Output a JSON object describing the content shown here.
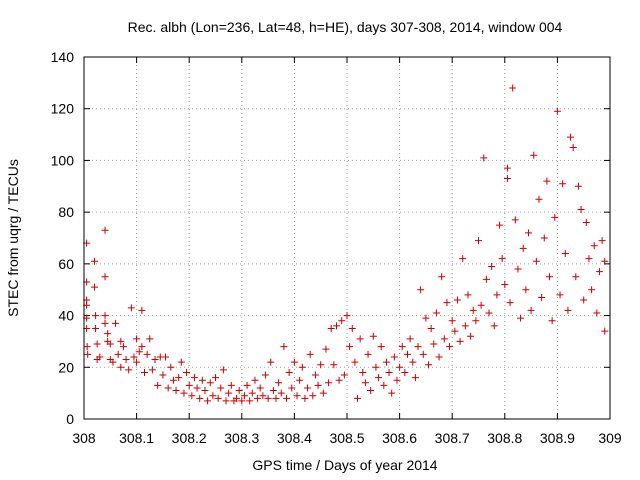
{
  "chart_data": {
    "type": "scatter",
    "title": "Rec. albh (Lon=236, Lat=48, h=HE), days 307-308, 2014, window 004",
    "xlabel": "GPS time / Days of year 2014",
    "ylabel": "STEC from uqrg / TECUs",
    "xlim": [
      308,
      309
    ],
    "ylim": [
      0,
      140
    ],
    "xticks": [
      308,
      308.1,
      308.2,
      308.3,
      308.4,
      308.5,
      308.6,
      308.7,
      308.8,
      308.9,
      309
    ],
    "xtick_labels": [
      "308",
      "308.1",
      "308.2",
      "308.3",
      "308.4",
      "308.5",
      "308.6",
      "308.7",
      "308.8",
      "308.9",
      "309"
    ],
    "yticks": [
      0,
      20,
      40,
      60,
      80,
      100,
      120,
      140
    ],
    "ytick_labels": [
      "0",
      "20",
      "40",
      "60",
      "80",
      "100",
      "120",
      "140"
    ],
    "grid": true,
    "marker": "+",
    "color": "#cc0000",
    "points": [
      [
        308.005,
        68
      ],
      [
        308.005,
        53
      ],
      [
        308.005,
        46
      ],
      [
        308.005,
        44
      ],
      [
        308.005,
        39
      ],
      [
        308.005,
        35
      ],
      [
        308.006,
        28
      ],
      [
        308.007,
        25
      ],
      [
        308.02,
        61
      ],
      [
        308.02,
        51
      ],
      [
        308.022,
        40
      ],
      [
        308.022,
        35
      ],
      [
        308.025,
        29
      ],
      [
        308.025,
        23
      ],
      [
        308.03,
        24
      ],
      [
        308.04,
        73
      ],
      [
        308.04,
        55
      ],
      [
        308.04,
        40
      ],
      [
        308.04,
        37
      ],
      [
        308.045,
        33
      ],
      [
        308.045,
        30
      ],
      [
        308.05,
        29
      ],
      [
        308.05,
        23
      ],
      [
        308.055,
        22
      ],
      [
        308.06,
        37
      ],
      [
        308.065,
        25
      ],
      [
        308.07,
        30
      ],
      [
        308.07,
        20
      ],
      [
        308.075,
        28
      ],
      [
        308.08,
        23
      ],
      [
        308.085,
        19
      ],
      [
        308.09,
        43
      ],
      [
        308.095,
        24
      ],
      [
        308.1,
        31
      ],
      [
        308.1,
        22
      ],
      [
        308.105,
        26
      ],
      [
        308.11,
        42
      ],
      [
        308.11,
        28
      ],
      [
        308.115,
        18
      ],
      [
        308.12,
        25
      ],
      [
        308.125,
        31
      ],
      [
        308.13,
        19
      ],
      [
        308.135,
        23
      ],
      [
        308.14,
        13
      ],
      [
        308.145,
        24
      ],
      [
        308.15,
        17
      ],
      [
        308.155,
        24
      ],
      [
        308.16,
        12
      ],
      [
        308.165,
        20
      ],
      [
        308.17,
        15
      ],
      [
        308.175,
        11
      ],
      [
        308.18,
        16
      ],
      [
        308.185,
        22
      ],
      [
        308.19,
        10
      ],
      [
        308.195,
        18
      ],
      [
        308.2,
        13
      ],
      [
        308.205,
        9
      ],
      [
        308.21,
        16
      ],
      [
        308.215,
        12
      ],
      [
        308.22,
        8
      ],
      [
        308.225,
        15
      ],
      [
        308.23,
        11
      ],
      [
        308.235,
        7
      ],
      [
        308.24,
        14
      ],
      [
        308.245,
        9
      ],
      [
        308.25,
        16
      ],
      [
        308.255,
        8
      ],
      [
        308.26,
        12
      ],
      [
        308.265,
        19
      ],
      [
        308.27,
        7
      ],
      [
        308.275,
        10
      ],
      [
        308.28,
        13
      ],
      [
        308.285,
        7
      ],
      [
        308.29,
        8
      ],
      [
        308.295,
        11
      ],
      [
        308.3,
        7
      ],
      [
        308.305,
        9
      ],
      [
        308.31,
        13
      ],
      [
        308.315,
        7
      ],
      [
        308.32,
        10
      ],
      [
        308.325,
        15
      ],
      [
        308.33,
        8
      ],
      [
        308.335,
        12
      ],
      [
        308.34,
        9
      ],
      [
        308.345,
        17
      ],
      [
        308.35,
        8
      ],
      [
        308.355,
        22
      ],
      [
        308.36,
        11
      ],
      [
        308.365,
        8
      ],
      [
        308.37,
        14
      ],
      [
        308.375,
        10
      ],
      [
        308.38,
        28
      ],
      [
        308.385,
        8
      ],
      [
        308.39,
        18
      ],
      [
        308.395,
        12
      ],
      [
        308.4,
        22
      ],
      [
        308.405,
        9
      ],
      [
        308.41,
        15
      ],
      [
        308.415,
        20
      ],
      [
        308.42,
        8
      ],
      [
        308.425,
        12
      ],
      [
        308.43,
        25
      ],
      [
        308.435,
        9
      ],
      [
        308.44,
        17
      ],
      [
        308.445,
        13
      ],
      [
        308.45,
        21
      ],
      [
        308.455,
        10
      ],
      [
        308.46,
        27
      ],
      [
        308.465,
        14
      ],
      [
        308.47,
        35
      ],
      [
        308.475,
        21
      ],
      [
        308.48,
        36
      ],
      [
        308.485,
        15
      ],
      [
        308.49,
        38
      ],
      [
        308.495,
        17
      ],
      [
        308.5,
        40
      ],
      [
        308.505,
        28
      ],
      [
        308.51,
        35
      ],
      [
        308.515,
        22
      ],
      [
        308.52,
        8
      ],
      [
        308.525,
        31
      ],
      [
        308.53,
        18
      ],
      [
        308.535,
        14
      ],
      [
        308.54,
        25
      ],
      [
        308.545,
        11
      ],
      [
        308.55,
        32
      ],
      [
        308.555,
        20
      ],
      [
        308.56,
        16
      ],
      [
        308.565,
        28
      ],
      [
        308.57,
        13
      ],
      [
        308.575,
        22
      ],
      [
        308.58,
        18
      ],
      [
        308.585,
        10
      ],
      [
        308.59,
        24
      ],
      [
        308.595,
        15
      ],
      [
        308.6,
        20
      ],
      [
        308.605,
        28
      ],
      [
        308.61,
        18
      ],
      [
        308.615,
        25
      ],
      [
        308.62,
        31
      ],
      [
        308.625,
        22
      ],
      [
        308.63,
        16
      ],
      [
        308.635,
        28
      ],
      [
        308.64,
        50
      ],
      [
        308.645,
        25
      ],
      [
        308.65,
        39
      ],
      [
        308.655,
        21
      ],
      [
        308.66,
        35
      ],
      [
        308.665,
        29
      ],
      [
        308.67,
        41
      ],
      [
        308.675,
        24
      ],
      [
        308.68,
        55
      ],
      [
        308.685,
        31
      ],
      [
        308.69,
        45
      ],
      [
        308.695,
        28
      ],
      [
        308.7,
        38
      ],
      [
        308.705,
        34
      ],
      [
        308.71,
        46
      ],
      [
        308.715,
        30
      ],
      [
        308.72,
        62
      ],
      [
        308.725,
        36
      ],
      [
        308.73,
        48
      ],
      [
        308.735,
        32
      ],
      [
        308.74,
        42
      ],
      [
        308.745,
        38
      ],
      [
        308.75,
        69
      ],
      [
        308.755,
        44
      ],
      [
        308.76,
        101
      ],
      [
        308.765,
        54
      ],
      [
        308.77,
        41
      ],
      [
        308.775,
        59
      ],
      [
        308.78,
        36
      ],
      [
        308.785,
        48
      ],
      [
        308.79,
        75
      ],
      [
        308.795,
        62
      ],
      [
        308.8,
        52
      ],
      [
        308.805,
        97
      ],
      [
        308.805,
        93
      ],
      [
        308.81,
        45
      ],
      [
        308.815,
        128
      ],
      [
        308.82,
        77
      ],
      [
        308.825,
        58
      ],
      [
        308.83,
        39
      ],
      [
        308.835,
        66
      ],
      [
        308.84,
        50
      ],
      [
        308.845,
        72
      ],
      [
        308.85,
        42
      ],
      [
        308.855,
        102
      ],
      [
        308.86,
        61
      ],
      [
        308.865,
        85
      ],
      [
        308.87,
        47
      ],
      [
        308.875,
        70
      ],
      [
        308.88,
        92
      ],
      [
        308.885,
        55
      ],
      [
        308.89,
        38
      ],
      [
        308.895,
        78
      ],
      [
        308.9,
        119
      ],
      [
        308.905,
        48
      ],
      [
        308.91,
        91
      ],
      [
        308.915,
        64
      ],
      [
        308.92,
        42
      ],
      [
        308.925,
        109
      ],
      [
        308.93,
        105
      ],
      [
        308.935,
        55
      ],
      [
        308.94,
        90
      ],
      [
        308.945,
        81
      ],
      [
        308.95,
        46
      ],
      [
        308.955,
        76
      ],
      [
        308.96,
        62
      ],
      [
        308.965,
        50
      ],
      [
        308.97,
        67
      ],
      [
        308.975,
        41
      ],
      [
        308.98,
        57
      ],
      [
        308.985,
        69
      ],
      [
        308.99,
        61
      ],
      [
        308.99,
        34
      ]
    ]
  }
}
